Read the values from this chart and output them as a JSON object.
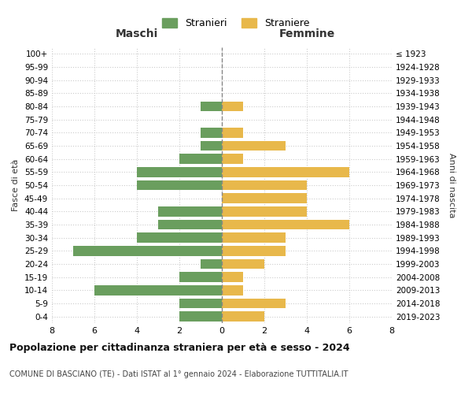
{
  "age_groups": [
    "0-4",
    "5-9",
    "10-14",
    "15-19",
    "20-24",
    "25-29",
    "30-34",
    "35-39",
    "40-44",
    "45-49",
    "50-54",
    "55-59",
    "60-64",
    "65-69",
    "70-74",
    "75-79",
    "80-84",
    "85-89",
    "90-94",
    "95-99",
    "100+"
  ],
  "birth_years": [
    "2019-2023",
    "2014-2018",
    "2009-2013",
    "2004-2008",
    "1999-2003",
    "1994-1998",
    "1989-1993",
    "1984-1988",
    "1979-1983",
    "1974-1978",
    "1969-1973",
    "1964-1968",
    "1959-1963",
    "1954-1958",
    "1949-1953",
    "1944-1948",
    "1939-1943",
    "1934-1938",
    "1929-1933",
    "1924-1928",
    "≤ 1923"
  ],
  "maschi": [
    2,
    2,
    6,
    2,
    1,
    7,
    4,
    3,
    3,
    0,
    4,
    4,
    2,
    1,
    1,
    0,
    1,
    0,
    0,
    0,
    0
  ],
  "femmine": [
    2,
    3,
    1,
    1,
    2,
    3,
    3,
    6,
    4,
    4,
    4,
    6,
    1,
    3,
    1,
    0,
    1,
    0,
    0,
    0,
    0
  ],
  "maschi_color": "#6a9e5e",
  "femmine_color": "#e8b84b",
  "title": "Popolazione per cittadinanza straniera per età e sesso - 2024",
  "subtitle": "COMUNE DI BASCIANO (TE) - Dati ISTAT al 1° gennaio 2024 - Elaborazione TUTTITALIA.IT",
  "legend_maschi": "Stranieri",
  "legend_femmine": "Straniere",
  "xlabel_left": "Maschi",
  "xlabel_right": "Femmine",
  "ylabel_left": "Fasce di età",
  "ylabel_right": "Anni di nascita",
  "xlim": 8,
  "bg_color": "#ffffff",
  "grid_color": "#cccccc"
}
